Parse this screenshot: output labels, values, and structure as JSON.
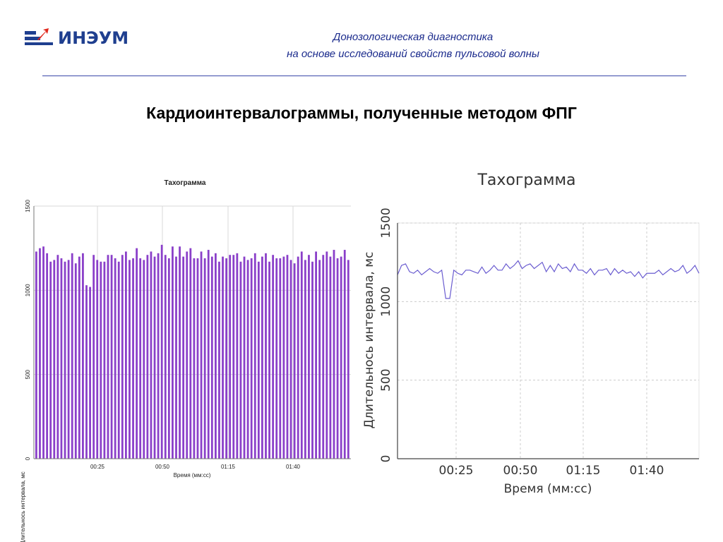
{
  "header": {
    "logo_text": "ИНЭУМ",
    "subtitle_line1": "Донозологическая диагностика",
    "subtitle_line2": "на основе исследований свойств пульсовой волны"
  },
  "slide_title": "Кардиоинтервалограммы, полученные методом ФПГ",
  "colors": {
    "brand_blue": "#1f3f8f",
    "brand_red": "#e0261b",
    "bars": "#8a3fc9",
    "line": "#6a5cd0"
  },
  "chart_data": [
    {
      "type": "bar",
      "title": "Тахограмма",
      "xlabel": "Время (мм:сс)",
      "ylabel": "Длительнось интервала, мс",
      "ylim": [
        0,
        1500
      ],
      "yticks": [
        0,
        500,
        1000,
        1500
      ],
      "xticks": [
        "00:25",
        "00:50",
        "01:15",
        "01:40"
      ],
      "grid": true,
      "series": [
        {
          "values": [
            1230,
            1250,
            1260,
            1220,
            1170,
            1180,
            1210,
            1190,
            1170,
            1180,
            1220,
            1160,
            1200,
            1220,
            1030,
            1020,
            1210,
            1180,
            1170,
            1170,
            1210,
            1210,
            1190,
            1170,
            1210,
            1230,
            1180,
            1190,
            1250,
            1190,
            1180,
            1210,
            1230,
            1200,
            1220,
            1270,
            1210,
            1190,
            1260,
            1200,
            1260,
            1200,
            1230,
            1250,
            1190,
            1190,
            1230,
            1190,
            1240,
            1200,
            1220,
            1170,
            1200,
            1190,
            1210,
            1210,
            1220,
            1170,
            1200,
            1180,
            1190,
            1220,
            1170,
            1200,
            1220,
            1170,
            1210,
            1190,
            1190,
            1200,
            1210,
            1180,
            1160,
            1200,
            1230,
            1180,
            1210,
            1170,
            1230,
            1180,
            1210,
            1230,
            1200,
            1240,
            1190,
            1200,
            1240,
            1180
          ]
        }
      ]
    },
    {
      "type": "line",
      "title": "Тахограмма",
      "xlabel": "Время (мм:сс)",
      "ylabel": "Длительнось интервала, мс",
      "ylim": [
        0,
        1500
      ],
      "yticks": [
        0,
        500,
        1000,
        1500
      ],
      "xticks": [
        "00:25",
        "00:50",
        "01:15",
        "01:40"
      ],
      "grid": true,
      "series": [
        {
          "values": [
            1170,
            1230,
            1240,
            1190,
            1180,
            1200,
            1170,
            1190,
            1210,
            1190,
            1180,
            1200,
            1020,
            1020,
            1200,
            1180,
            1170,
            1200,
            1200,
            1190,
            1180,
            1220,
            1180,
            1200,
            1230,
            1200,
            1200,
            1240,
            1210,
            1230,
            1260,
            1210,
            1230,
            1240,
            1210,
            1230,
            1250,
            1190,
            1230,
            1190,
            1240,
            1210,
            1220,
            1190,
            1240,
            1200,
            1200,
            1180,
            1210,
            1170,
            1200,
            1200,
            1210,
            1170,
            1210,
            1180,
            1200,
            1180,
            1190,
            1160,
            1190,
            1150,
            1180,
            1180,
            1180,
            1200,
            1170,
            1190,
            1210,
            1190,
            1200,
            1230,
            1180,
            1200,
            1230,
            1180
          ]
        }
      ]
    }
  ]
}
